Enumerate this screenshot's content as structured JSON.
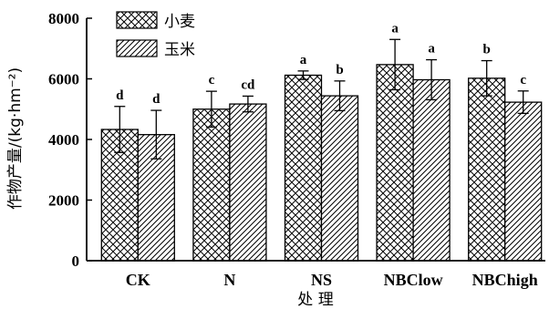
{
  "chart_data": {
    "type": "bar",
    "title": "",
    "xlabel": "处 理",
    "ylabel": "作物产量/(kg·hm⁻²)",
    "ylim": [
      0,
      8000
    ],
    "yticks": [
      0,
      2000,
      4000,
      6000,
      8000
    ],
    "grid": false,
    "legend_position": "top-left",
    "categories": [
      "CK",
      "N",
      "NS",
      "NBClow",
      "NBChigh"
    ],
    "series": [
      {
        "name": "小麦",
        "pattern": "crosshatch",
        "values": [
          4330,
          5000,
          6120,
          6470,
          6020
        ],
        "errors": [
          760,
          590,
          140,
          830,
          580
        ],
        "labels": [
          "d",
          "c",
          "a",
          "a",
          "b"
        ]
      },
      {
        "name": "玉米",
        "pattern": "diagonal",
        "values": [
          4160,
          5170,
          5440,
          5970,
          5230
        ],
        "errors": [
          800,
          260,
          490,
          660,
          370
        ],
        "labels": [
          "d",
          "cd",
          "b",
          "a",
          "c"
        ]
      }
    ],
    "colors": {
      "ink": "#000000",
      "background": "#ffffff"
    }
  }
}
